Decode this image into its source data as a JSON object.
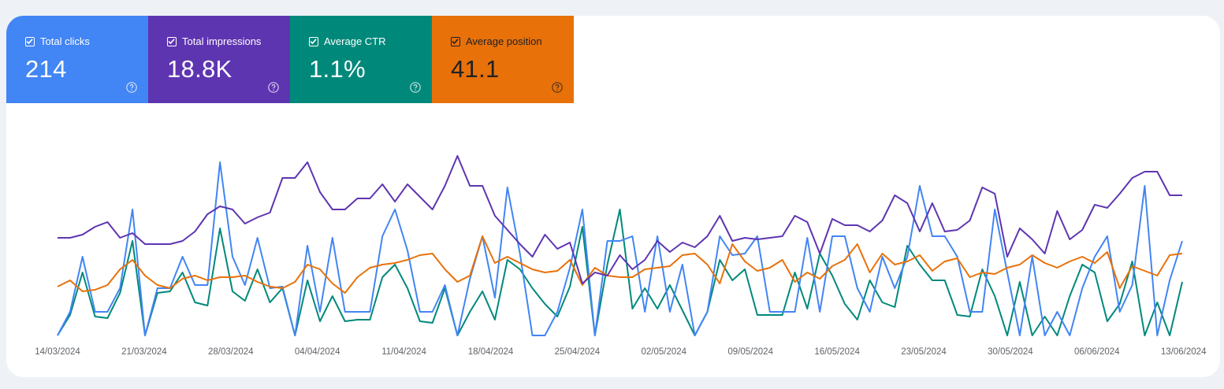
{
  "metrics": [
    {
      "label": "Total clicks",
      "value": "214",
      "color": "#4285f4",
      "text_color": "#ffffff",
      "checked": true
    },
    {
      "label": "Total impressions",
      "value": "18.8K",
      "color": "#5e35b1",
      "text_color": "#ffffff",
      "checked": true
    },
    {
      "label": "Average CTR",
      "value": "1.1%",
      "color": "#00897b",
      "text_color": "#ffffff",
      "checked": true
    },
    {
      "label": "Average position",
      "value": "41.1",
      "color": "#e8710a",
      "text_color": "#202124",
      "checked": true
    }
  ],
  "chart_data": {
    "type": "line",
    "x_ticks": [
      "14/03/2024",
      "21/03/2024",
      "28/03/2024",
      "04/04/2024",
      "11/04/2024",
      "18/04/2024",
      "25/04/2024",
      "02/05/2024",
      "09/05/2024",
      "16/05/2024",
      "23/05/2024",
      "30/05/2024",
      "06/06/2024",
      "13/06/2024"
    ],
    "x_start": "14/03/2024",
    "x_end": "13/06/2024",
    "grid": false,
    "legend": "none",
    "series": [
      {
        "name": "Total impressions",
        "color": "#5e35b1",
        "values": [
          0.62,
          0.62,
          0.64,
          0.69,
          0.72,
          0.62,
          0.65,
          0.58,
          0.58,
          0.58,
          0.6,
          0.66,
          0.77,
          0.82,
          0.8,
          0.71,
          0.75,
          0.78,
          1.0,
          1.0,
          1.1,
          0.91,
          0.8,
          0.8,
          0.87,
          0.87,
          0.96,
          0.85,
          0.96,
          0.88,
          0.8,
          0.95,
          1.14,
          0.95,
          0.95,
          0.76,
          0.67,
          0.58,
          0.5,
          0.64,
          0.55,
          0.59,
          0.33,
          0.4,
          0.38,
          0.51,
          0.42,
          0.48,
          0.6,
          0.53,
          0.59,
          0.56,
          0.63,
          0.76,
          0.6,
          0.62,
          0.61,
          0.62,
          0.63,
          0.76,
          0.72,
          0.52,
          0.74,
          0.7,
          0.7,
          0.66,
          0.73,
          0.89,
          0.84,
          0.66,
          0.84,
          0.66,
          0.67,
          0.73,
          0.94,
          0.9,
          0.5,
          0.68,
          0.61,
          0.52,
          0.79,
          0.61,
          0.67,
          0.83,
          0.81,
          0.9,
          1.0,
          1.04,
          1.04,
          0.89,
          0.89
        ]
      },
      {
        "name": "Total clicks",
        "color": "#4285f4",
        "values": [
          0,
          0.15,
          0.5,
          0.15,
          0.15,
          0.3,
          0.8,
          0,
          0.3,
          0.3,
          0.5,
          0.32,
          0.32,
          1.1,
          0.5,
          0.32,
          0.62,
          0.3,
          0.31,
          0,
          0.57,
          0.15,
          0.62,
          0.15,
          0.15,
          0.15,
          0.63,
          0.8,
          0.54,
          0.15,
          0.15,
          0.32,
          0,
          0.36,
          0.63,
          0.24,
          0.94,
          0.52,
          0,
          0,
          0.15,
          0.43,
          0.8,
          0,
          0.6,
          0.6,
          0.63,
          0.15,
          0.63,
          0.15,
          0.45,
          0,
          0.15,
          0.63,
          0.51,
          0.52,
          0.63,
          0.15,
          0.15,
          0.15,
          0.62,
          0.15,
          0.63,
          0.63,
          0.3,
          0.15,
          0.5,
          0.3,
          0.5,
          0.95,
          0.63,
          0.63,
          0.5,
          0.15,
          0.15,
          0.8,
          0.4,
          0,
          0.5,
          0,
          0.15,
          0,
          0.3,
          0.5,
          0.63,
          0.15,
          0.32,
          0.95,
          0,
          0.35,
          0.6
        ]
      },
      {
        "name": "Average CTR",
        "color": "#00897b",
        "values": [
          0,
          0.13,
          0.4,
          0.12,
          0.11,
          0.27,
          0.6,
          0,
          0.27,
          0.28,
          0.4,
          0.21,
          0.19,
          0.68,
          0.28,
          0.22,
          0.42,
          0.21,
          0.3,
          0,
          0.35,
          0.09,
          0.25,
          0.09,
          0.1,
          0.1,
          0.37,
          0.45,
          0.3,
          0.09,
          0.08,
          0.3,
          0,
          0.15,
          0.28,
          0.1,
          0.48,
          0.42,
          0.3,
          0.2,
          0.12,
          0.31,
          0.69,
          0,
          0.45,
          0.8,
          0.17,
          0.3,
          0.17,
          0.32,
          0.16,
          0,
          0.15,
          0.48,
          0.35,
          0.42,
          0.13,
          0.13,
          0.13,
          0.4,
          0.17,
          0.52,
          0.38,
          0.2,
          0.1,
          0.35,
          0.21,
          0.18,
          0.57,
          0.45,
          0.35,
          0.35,
          0.13,
          0.12,
          0.42,
          0.25,
          0,
          0.34,
          0,
          0.12,
          0,
          0.25,
          0.45,
          0.4,
          0.09,
          0.2,
          0.47,
          0,
          0.21,
          0,
          0.34
        ]
      },
      {
        "name": "Average position",
        "color": "#e8710a",
        "values": [
          0.31,
          0.35,
          0.28,
          0.29,
          0.32,
          0.42,
          0.48,
          0.38,
          0.32,
          0.3,
          0.36,
          0.38,
          0.35,
          0.37,
          0.37,
          0.38,
          0.34,
          0.31,
          0.3,
          0.34,
          0.45,
          0.42,
          0.33,
          0.27,
          0.37,
          0.43,
          0.45,
          0.46,
          0.48,
          0.51,
          0.52,
          0.42,
          0.34,
          0.38,
          0.63,
          0.46,
          0.5,
          0.46,
          0.42,
          0.4,
          0.41,
          0.48,
          0.32,
          0.43,
          0.38,
          0.37,
          0.37,
          0.42,
          0.43,
          0.44,
          0.51,
          0.52,
          0.45,
          0.33,
          0.58,
          0.47,
          0.41,
          0.43,
          0.48,
          0.34,
          0.4,
          0.36,
          0.44,
          0.48,
          0.58,
          0.4,
          0.52,
          0.45,
          0.47,
          0.51,
          0.41,
          0.47,
          0.49,
          0.37,
          0.4,
          0.39,
          0.43,
          0.45,
          0.51,
          0.46,
          0.43,
          0.47,
          0.5,
          0.46,
          0.53,
          0.3,
          0.44,
          0.41,
          0.38,
          0.51,
          0.52
        ]
      }
    ]
  }
}
